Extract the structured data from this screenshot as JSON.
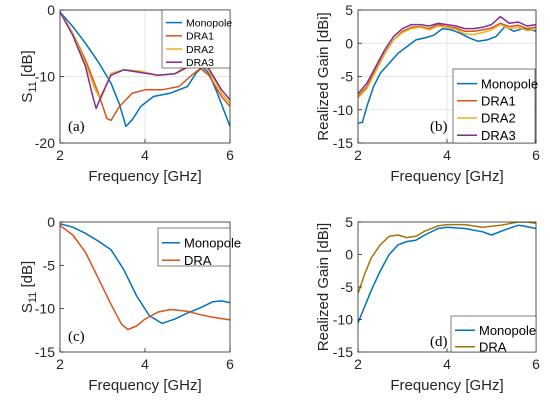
{
  "chart_data": [
    {
      "id": "a",
      "type": "line",
      "panel_label": "(a)",
      "xlabel": "Frequency [GHz]",
      "ylabel_main": "S",
      "ylabel_sub": "11",
      "ylabel_unit": " [dB]",
      "xlim": [
        2,
        6
      ],
      "ylim": [
        -20,
        0
      ],
      "xticks": [
        2,
        4,
        6
      ],
      "yticks": [
        0,
        -10,
        -20
      ],
      "grid": true,
      "legend": "top-right",
      "series": [
        {
          "name": "Monopole",
          "color": "#0072BD",
          "points": [
            [
              2.0,
              -0.3
            ],
            [
              2.3,
              -2.5
            ],
            [
              2.6,
              -5.0
            ],
            [
              2.9,
              -7.8
            ],
            [
              3.2,
              -11.0
            ],
            [
              3.4,
              -14.2
            ],
            [
              3.55,
              -17.5
            ],
            [
              3.7,
              -16.5
            ],
            [
              3.9,
              -14.5
            ],
            [
              4.2,
              -13.0
            ],
            [
              4.6,
              -12.5
            ],
            [
              5.0,
              -11.5
            ],
            [
              5.2,
              -9.5
            ],
            [
              5.35,
              -8.6
            ],
            [
              5.5,
              -9.5
            ],
            [
              5.7,
              -12.5
            ],
            [
              6.0,
              -17.5
            ]
          ]
        },
        {
          "name": "DRA1",
          "color": "#D95319",
          "points": [
            [
              2.0,
              -0.3
            ],
            [
              2.3,
              -3.5
            ],
            [
              2.6,
              -7.5
            ],
            [
              2.9,
              -12.5
            ],
            [
              3.1,
              -16.3
            ],
            [
              3.2,
              -16.6
            ],
            [
              3.4,
              -14.5
            ],
            [
              3.7,
              -12.5
            ],
            [
              4.0,
              -12.0
            ],
            [
              4.4,
              -12.0
            ],
            [
              4.8,
              -11.5
            ],
            [
              5.1,
              -9.8
            ],
            [
              5.3,
              -8.8
            ],
            [
              5.5,
              -9.8
            ],
            [
              5.8,
              -13.0
            ],
            [
              6.0,
              -14.5
            ]
          ]
        },
        {
          "name": "DRA2",
          "color": "#EDB120",
          "points": [
            [
              2.0,
              -0.3
            ],
            [
              2.3,
              -3.5
            ],
            [
              2.6,
              -8.0
            ],
            [
              2.8,
              -11.5
            ],
            [
              2.95,
              -13.5
            ],
            [
              3.05,
              -12.0
            ],
            [
              3.2,
              -9.5
            ],
            [
              3.5,
              -9.0
            ],
            [
              3.9,
              -9.2
            ],
            [
              4.3,
              -9.8
            ],
            [
              4.7,
              -9.6
            ],
            [
              5.0,
              -8.3
            ],
            [
              5.2,
              -7.6
            ],
            [
              5.4,
              -8.3
            ],
            [
              5.6,
              -10.2
            ],
            [
              5.8,
              -12.5
            ],
            [
              6.0,
              -14.0
            ]
          ]
        },
        {
          "name": "DRA3",
          "color": "#7E2F8E",
          "points": [
            [
              2.0,
              -0.3
            ],
            [
              2.3,
              -3.8
            ],
            [
              2.6,
              -8.5
            ],
            [
              2.75,
              -12.5
            ],
            [
              2.85,
              -14.8
            ],
            [
              3.0,
              -12.5
            ],
            [
              3.2,
              -9.8
            ],
            [
              3.5,
              -9.0
            ],
            [
              3.9,
              -9.4
            ],
            [
              4.3,
              -9.8
            ],
            [
              4.7,
              -9.6
            ],
            [
              5.0,
              -8.6
            ],
            [
              5.25,
              -7.7
            ],
            [
              5.5,
              -8.8
            ],
            [
              5.8,
              -12.0
            ],
            [
              6.0,
              -13.5
            ]
          ]
        }
      ]
    },
    {
      "id": "b",
      "type": "line",
      "panel_label": "(b)",
      "xlabel": "Frequency [GHz]",
      "ylabel": "Realized Gain [dBi]",
      "xlim": [
        2,
        6
      ],
      "ylim": [
        -15,
        5
      ],
      "xticks": [
        2,
        4,
        6
      ],
      "yticks": [
        5,
        0,
        -5,
        -10,
        -15
      ],
      "grid": true,
      "legend": "bottom-right",
      "series": [
        {
          "name": "Monopole",
          "color": "#0072BD",
          "points": [
            [
              2.0,
              -12.0
            ],
            [
              2.1,
              -11.9
            ],
            [
              2.2,
              -9.5
            ],
            [
              2.35,
              -6.5
            ],
            [
              2.5,
              -4.5
            ],
            [
              2.7,
              -3.0
            ],
            [
              2.9,
              -1.5
            ],
            [
              3.1,
              -0.5
            ],
            [
              3.3,
              0.5
            ],
            [
              3.5,
              0.8
            ],
            [
              3.7,
              1.2
            ],
            [
              3.9,
              2.2
            ],
            [
              4.1,
              2.0
            ],
            [
              4.3,
              1.5
            ],
            [
              4.5,
              0.8
            ],
            [
              4.7,
              0.3
            ],
            [
              4.9,
              0.5
            ],
            [
              5.1,
              1.0
            ],
            [
              5.3,
              2.5
            ],
            [
              5.5,
              1.8
            ],
            [
              5.7,
              2.2
            ],
            [
              5.9,
              2.0
            ],
            [
              6.0,
              1.8
            ]
          ]
        },
        {
          "name": "DRA1",
          "color": "#D95319",
          "points": [
            [
              2.0,
              -8.0
            ],
            [
              2.2,
              -6.5
            ],
            [
              2.4,
              -4.0
            ],
            [
              2.6,
              -1.5
            ],
            [
              2.8,
              0.5
            ],
            [
              3.0,
              1.8
            ],
            [
              3.2,
              2.4
            ],
            [
              3.4,
              2.5
            ],
            [
              3.6,
              2.2
            ],
            [
              3.8,
              2.8
            ],
            [
              4.0,
              2.5
            ],
            [
              4.2,
              2.3
            ],
            [
              4.4,
              1.8
            ],
            [
              4.6,
              1.8
            ],
            [
              4.8,
              2.0
            ],
            [
              5.0,
              2.3
            ],
            [
              5.2,
              3.0
            ],
            [
              5.4,
              2.5
            ],
            [
              5.6,
              2.7
            ],
            [
              5.8,
              2.2
            ],
            [
              6.0,
              2.4
            ]
          ]
        },
        {
          "name": "DRA2",
          "color": "#EDB120",
          "points": [
            [
              2.0,
              -8.2
            ],
            [
              2.2,
              -6.8
            ],
            [
              2.4,
              -4.2
            ],
            [
              2.6,
              -1.6
            ],
            [
              2.8,
              0.5
            ],
            [
              3.0,
              1.6
            ],
            [
              3.2,
              2.2
            ],
            [
              3.4,
              2.4
            ],
            [
              3.6,
              2.0
            ],
            [
              3.8,
              2.6
            ],
            [
              4.0,
              2.4
            ],
            [
              4.2,
              2.1
            ],
            [
              4.4,
              1.4
            ],
            [
              4.6,
              1.3
            ],
            [
              4.8,
              1.6
            ],
            [
              5.0,
              2.0
            ],
            [
              5.2,
              2.8
            ],
            [
              5.4,
              2.2
            ],
            [
              5.6,
              2.4
            ],
            [
              5.8,
              1.9
            ],
            [
              6.0,
              2.1
            ]
          ]
        },
        {
          "name": "DRA3",
          "color": "#7E2F8E",
          "points": [
            [
              2.0,
              -7.6
            ],
            [
              2.2,
              -6.0
            ],
            [
              2.4,
              -3.5
            ],
            [
              2.6,
              -1.0
            ],
            [
              2.8,
              1.0
            ],
            [
              3.0,
              2.2
            ],
            [
              3.2,
              2.8
            ],
            [
              3.4,
              2.8
            ],
            [
              3.6,
              2.6
            ],
            [
              3.8,
              3.0
            ],
            [
              4.0,
              2.8
            ],
            [
              4.2,
              2.6
            ],
            [
              4.4,
              2.2
            ],
            [
              4.6,
              2.2
            ],
            [
              4.8,
              2.4
            ],
            [
              5.0,
              2.8
            ],
            [
              5.2,
              4.0
            ],
            [
              5.4,
              3.0
            ],
            [
              5.6,
              3.2
            ],
            [
              5.8,
              2.6
            ],
            [
              6.0,
              2.8
            ]
          ]
        }
      ]
    },
    {
      "id": "c",
      "type": "line",
      "panel_label": "(c)",
      "xlabel": "Frequency [GHz]",
      "ylabel_main": "S",
      "ylabel_sub": "11",
      "ylabel_unit": " [dB]",
      "xlim": [
        2,
        6
      ],
      "ylim": [
        -15,
        0
      ],
      "xticks": [
        2,
        4,
        6
      ],
      "yticks": [
        0,
        -5,
        -10,
        -15
      ],
      "grid": false,
      "legend": "top-right",
      "series": [
        {
          "name": "Monopole",
          "color": "#0072BD",
          "points": [
            [
              2.0,
              -0.2
            ],
            [
              2.3,
              -0.6
            ],
            [
              2.6,
              -1.3
            ],
            [
              2.9,
              -2.2
            ],
            [
              3.2,
              -3.2
            ],
            [
              3.5,
              -5.5
            ],
            [
              3.8,
              -8.5
            ],
            [
              4.1,
              -10.8
            ],
            [
              4.4,
              -11.7
            ],
            [
              4.7,
              -11.2
            ],
            [
              5.0,
              -10.5
            ],
            [
              5.3,
              -9.9
            ],
            [
              5.6,
              -9.2
            ],
            [
              5.8,
              -9.1
            ],
            [
              6.0,
              -9.3
            ]
          ]
        },
        {
          "name": "DRA",
          "color": "#D95319",
          "points": [
            [
              2.0,
              -0.4
            ],
            [
              2.3,
              -1.5
            ],
            [
              2.6,
              -3.5
            ],
            [
              2.9,
              -6.5
            ],
            [
              3.2,
              -9.5
            ],
            [
              3.45,
              -11.8
            ],
            [
              3.6,
              -12.4
            ],
            [
              3.8,
              -12.0
            ],
            [
              4.0,
              -11.2
            ],
            [
              4.3,
              -10.4
            ],
            [
              4.6,
              -10.1
            ],
            [
              5.0,
              -10.3
            ],
            [
              5.3,
              -10.7
            ],
            [
              5.6,
              -11.0
            ],
            [
              6.0,
              -11.3
            ]
          ]
        }
      ]
    },
    {
      "id": "d",
      "type": "line",
      "panel_label": "(d)",
      "xlabel": "Frequency [GHz]",
      "ylabel": "Realized Gain [dBi]",
      "xlim": [
        2,
        6
      ],
      "ylim": [
        -15,
        5
      ],
      "xticks": [
        2,
        4,
        6
      ],
      "yticks": [
        5,
        0,
        -5,
        -10,
        -15
      ],
      "grid": false,
      "legend": "bottom-right",
      "series": [
        {
          "name": "Monopole",
          "color": "#0072BD",
          "points": [
            [
              2.0,
              -10.5
            ],
            [
              2.15,
              -8.0
            ],
            [
              2.3,
              -5.5
            ],
            [
              2.5,
              -2.5
            ],
            [
              2.7,
              0.0
            ],
            [
              2.9,
              1.5
            ],
            [
              3.1,
              2.0
            ],
            [
              3.3,
              2.2
            ],
            [
              3.5,
              3.0
            ],
            [
              3.8,
              4.0
            ],
            [
              4.0,
              4.2
            ],
            [
              4.4,
              4.0
            ],
            [
              4.8,
              3.5
            ],
            [
              5.0,
              3.0
            ],
            [
              5.3,
              3.8
            ],
            [
              5.6,
              4.5
            ],
            [
              5.8,
              4.3
            ],
            [
              6.0,
              4.0
            ]
          ]
        },
        {
          "name": "DRA",
          "color": "#A2760C",
          "points": [
            [
              2.0,
              -6.0
            ],
            [
              2.15,
              -3.0
            ],
            [
              2.3,
              -0.5
            ],
            [
              2.5,
              1.5
            ],
            [
              2.7,
              2.8
            ],
            [
              2.9,
              3.0
            ],
            [
              3.1,
              2.6
            ],
            [
              3.3,
              2.8
            ],
            [
              3.5,
              3.6
            ],
            [
              3.8,
              4.4
            ],
            [
              4.0,
              4.6
            ],
            [
              4.4,
              4.6
            ],
            [
              4.8,
              4.2
            ],
            [
              5.2,
              4.5
            ],
            [
              5.6,
              5.0
            ],
            [
              5.8,
              5.0
            ],
            [
              6.0,
              4.8
            ]
          ]
        }
      ]
    }
  ]
}
